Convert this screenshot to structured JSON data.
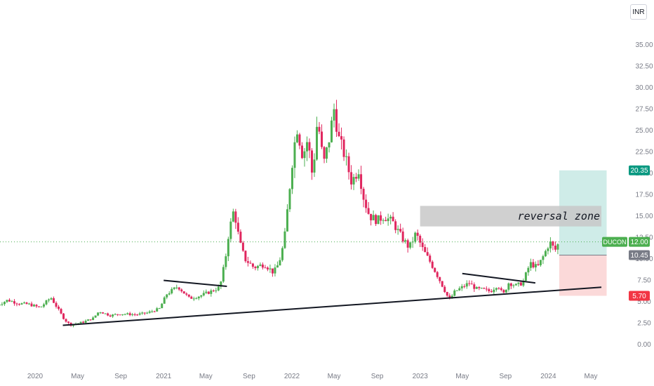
{
  "currency_button": "INR",
  "chart_data": {
    "type": "candlestick",
    "symbol": "DUCON",
    "y_ticks": [
      "35.00",
      "32.50",
      "30.00",
      "27.50",
      "25.00",
      "22.50",
      "20.00",
      "17.50",
      "15.00",
      "12.50",
      "10.00",
      "7.50",
      "5.00",
      "2.50",
      "0.00"
    ],
    "x_ticks": [
      {
        "label": "2020",
        "date": "2020-01"
      },
      {
        "label": "May",
        "date": "2020-05"
      },
      {
        "label": "Sep",
        "date": "2020-09"
      },
      {
        "label": "2021",
        "date": "2021-01"
      },
      {
        "label": "May",
        "date": "2021-05"
      },
      {
        "label": "Sep",
        "date": "2021-09"
      },
      {
        "label": "2022",
        "date": "2022-01"
      },
      {
        "label": "May",
        "date": "2022-05"
      },
      {
        "label": "Sep",
        "date": "2022-09"
      },
      {
        "label": "2023",
        "date": "2023-01"
      },
      {
        "label": "May",
        "date": "2023-05"
      },
      {
        "label": "Sep",
        "date": "2023-09"
      },
      {
        "label": "2024",
        "date": "2024-01"
      },
      {
        "label": "May",
        "date": "2024-05"
      }
    ],
    "ylim": [
      0,
      35
    ],
    "price_path": [
      [
        "2019-09-15",
        4.6
      ],
      [
        "2019-10-15",
        5.2
      ],
      [
        "2019-11-15",
        4.8
      ],
      [
        "2019-12-15",
        4.7
      ],
      [
        "2020-01-15",
        4.3
      ],
      [
        "2020-02-15",
        5.5
      ],
      [
        "2020-03-01",
        4.5
      ],
      [
        "2020-03-25",
        2.9
      ],
      [
        "2020-04-10",
        2.3
      ],
      [
        "2020-05-15",
        2.6
      ],
      [
        "2020-06-15",
        3.1
      ],
      [
        "2020-07-01",
        3.9
      ],
      [
        "2020-08-01",
        3.4
      ],
      [
        "2020-09-01",
        3.6
      ],
      [
        "2020-10-15",
        3.5
      ],
      [
        "2020-11-15",
        3.7
      ],
      [
        "2020-12-20",
        4.2
      ],
      [
        "2021-01-10",
        5.9
      ],
      [
        "2021-02-10",
        6.8
      ],
      [
        "2021-03-15",
        5.4
      ],
      [
        "2021-04-15",
        5.7
      ],
      [
        "2021-05-15",
        6.2
      ],
      [
        "2021-06-10",
        6.7
      ],
      [
        "2021-06-25",
        9.8
      ],
      [
        "2021-07-05",
        13.0
      ],
      [
        "2021-07-20",
        15.8
      ],
      [
        "2021-08-05",
        12.0
      ],
      [
        "2021-08-20",
        10.0
      ],
      [
        "2021-09-15",
        9.0
      ],
      [
        "2021-10-15",
        9.4
      ],
      [
        "2021-11-10",
        8.4
      ],
      [
        "2021-11-25",
        9.5
      ],
      [
        "2021-12-10",
        12.0
      ],
      [
        "2021-12-20",
        16.0
      ],
      [
        "2022-01-01",
        21.0
      ],
      [
        "2022-01-15",
        25.5
      ],
      [
        "2022-02-01",
        22.0
      ],
      [
        "2022-02-15",
        24.0
      ],
      [
        "2022-03-01",
        19.5
      ],
      [
        "2022-03-15",
        26.5
      ],
      [
        "2022-04-01",
        21.0
      ],
      [
        "2022-04-15",
        23.5
      ],
      [
        "2022-05-01",
        27.5
      ],
      [
        "2022-05-15",
        24.0
      ],
      [
        "2022-06-01",
        22.0
      ],
      [
        "2022-06-20",
        19.0
      ],
      [
        "2022-07-10",
        20.5
      ],
      [
        "2022-07-25",
        17.0
      ],
      [
        "2022-08-10",
        15.0
      ],
      [
        "2022-09-01",
        14.5
      ],
      [
        "2022-09-20",
        15.0
      ],
      [
        "2022-10-15",
        14.3
      ],
      [
        "2022-11-10",
        12.5
      ],
      [
        "2022-12-01",
        11.3
      ],
      [
        "2022-12-20",
        13.0
      ],
      [
        "2023-01-10",
        11.0
      ],
      [
        "2023-02-01",
        9.5
      ],
      [
        "2023-02-20",
        8.0
      ],
      [
        "2023-03-10",
        6.5
      ],
      [
        "2023-03-25",
        5.2
      ],
      [
        "2023-04-10",
        6.2
      ],
      [
        "2023-05-01",
        6.7
      ],
      [
        "2023-05-20",
        7.2
      ],
      [
        "2023-06-10",
        6.5
      ],
      [
        "2023-07-01",
        6.4
      ],
      [
        "2023-07-20",
        6.2
      ],
      [
        "2023-08-10",
        7.0
      ],
      [
        "2023-08-25",
        5.8
      ],
      [
        "2023-09-10",
        7.2
      ],
      [
        "2023-10-01",
        6.9
      ],
      [
        "2023-10-20",
        7.2
      ],
      [
        "2023-11-10",
        9.5
      ],
      [
        "2023-12-01",
        9.0
      ],
      [
        "2023-12-20",
        10.5
      ],
      [
        "2024-01-05",
        12.0
      ],
      [
        "2024-01-20",
        11.0
      ],
      [
        "2024-02-01",
        12.0
      ]
    ],
    "trendlines": [
      {
        "from": [
          "2020-03-20",
          2.25
        ],
        "to": [
          "2024-05-31",
          6.7
        ]
      },
      {
        "from": [
          "2021-01-01",
          7.5
        ],
        "to": [
          "2021-06-30",
          6.8
        ]
      },
      {
        "from": [
          "2023-05-01",
          8.3
        ],
        "to": [
          "2023-11-25",
          7.2
        ]
      }
    ],
    "annotations": [
      {
        "text": "reversal zone",
        "x_from": "2023-01-01",
        "x_to": "2024-05-31",
        "y_from": 13.8,
        "y_to": 16.2
      }
    ],
    "position_tool": {
      "entry": 10.45,
      "target": 20.35,
      "stop": 5.7,
      "x_from": "2024-02-01",
      "x_to": "2024-06-15"
    },
    "last_price": 12.0,
    "price_labels": [
      {
        "text": "20.35",
        "value": 20.35,
        "color": "#089981"
      },
      {
        "text": "DUCON",
        "value": 12.0,
        "color": "#4caf50"
      },
      {
        "text": "12.00",
        "value": 12.0,
        "color": "#4caf50"
      },
      {
        "text": "10.45",
        "value": 10.45,
        "color": "#787b86"
      },
      {
        "text": "5.70",
        "value": 5.7,
        "color": "#f23645"
      }
    ],
    "colors": {
      "up": "#4caf50",
      "down": "#e0265e",
      "target_zone": "#cfece8",
      "stop_zone": "#fbd9d9",
      "reversal_zone": "#c8c8c8"
    },
    "grid": false
  }
}
